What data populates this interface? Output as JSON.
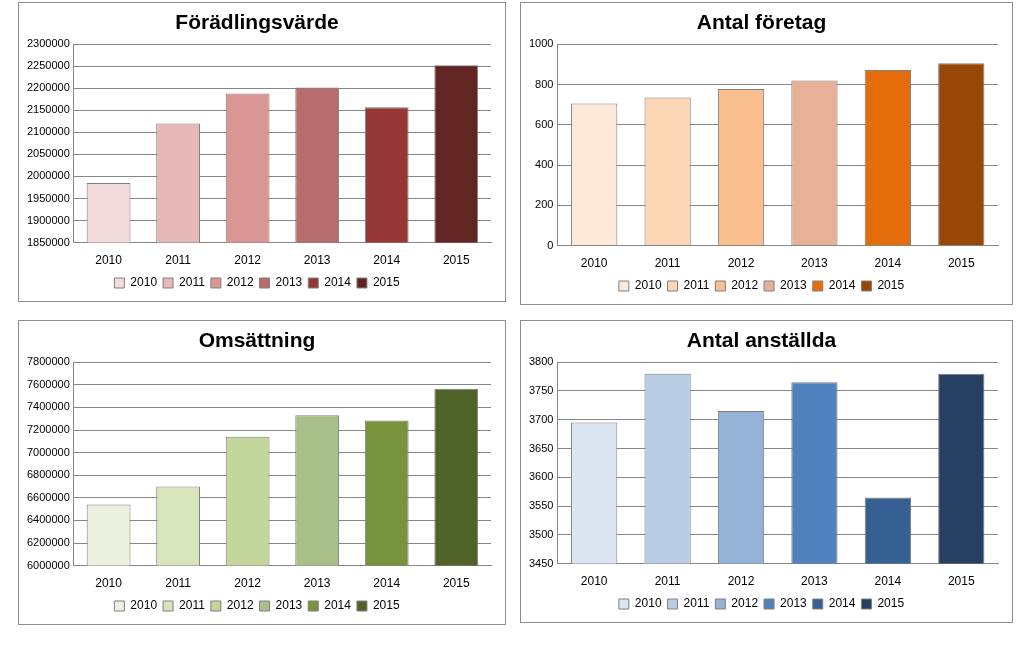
{
  "chart_data": [
    {
      "type": "bar",
      "title": "Förädlingsvärde",
      "categories": [
        "2010",
        "2011",
        "2012",
        "2013",
        "2014",
        "2015"
      ],
      "values": [
        1985000,
        2120000,
        2188000,
        2202000,
        2157000,
        2252000
      ],
      "colors": [
        "#f2dcdb",
        "#e6b9b8",
        "#d99694",
        "#b86d6d",
        "#953735",
        "#632523"
      ],
      "ylim": [
        1850000,
        2300000
      ],
      "yticks": [
        1850000,
        1900000,
        1950000,
        2000000,
        2050000,
        2100000,
        2150000,
        2200000,
        2250000,
        2300000
      ],
      "grid": true,
      "legend": "bottom"
    },
    {
      "type": "bar",
      "title": "Antal företag",
      "categories": [
        "2010",
        "2011",
        "2012",
        "2013",
        "2014",
        "2015"
      ],
      "values": [
        705,
        735,
        778,
        820,
        872,
        905
      ],
      "colors": [
        "#fde9d9",
        "#fcd5b4",
        "#fabf8f",
        "#e8b096",
        "#e46c0a",
        "#974806"
      ],
      "ylim": [
        0,
        1000
      ],
      "yticks": [
        0,
        200,
        400,
        600,
        800,
        1000
      ],
      "grid": true,
      "legend": "bottom"
    },
    {
      "type": "bar",
      "title": "Omsättning",
      "categories": [
        "2010",
        "2011",
        "2012",
        "2013",
        "2014",
        "2015"
      ],
      "values": [
        6540000,
        6700000,
        7140000,
        7330000,
        7285000,
        7565000
      ],
      "colors": [
        "#ebf1de",
        "#d7e4bc",
        "#c3d69b",
        "#a9bf8a",
        "#77933c",
        "#4f6228"
      ],
      "ylim": [
        6000000,
        7800000
      ],
      "yticks": [
        6000000,
        6200000,
        6400000,
        6600000,
        6800000,
        7000000,
        7200000,
        7400000,
        7600000,
        7800000
      ],
      "grid": true,
      "legend": "bottom"
    },
    {
      "type": "bar",
      "title": "Antal anställda",
      "categories": [
        "2010",
        "2011",
        "2012",
        "2013",
        "2014",
        "2015"
      ],
      "values": [
        3695,
        3780,
        3715,
        3765,
        3565,
        3780
      ],
      "colors": [
        "#dce6f2",
        "#b9cde5",
        "#95b3d7",
        "#4f81bd",
        "#376092",
        "#254061"
      ],
      "ylim": [
        3450,
        3800
      ],
      "yticks": [
        3450,
        3500,
        3550,
        3600,
        3650,
        3700,
        3750,
        3800
      ],
      "grid": true,
      "legend": "bottom"
    }
  ]
}
